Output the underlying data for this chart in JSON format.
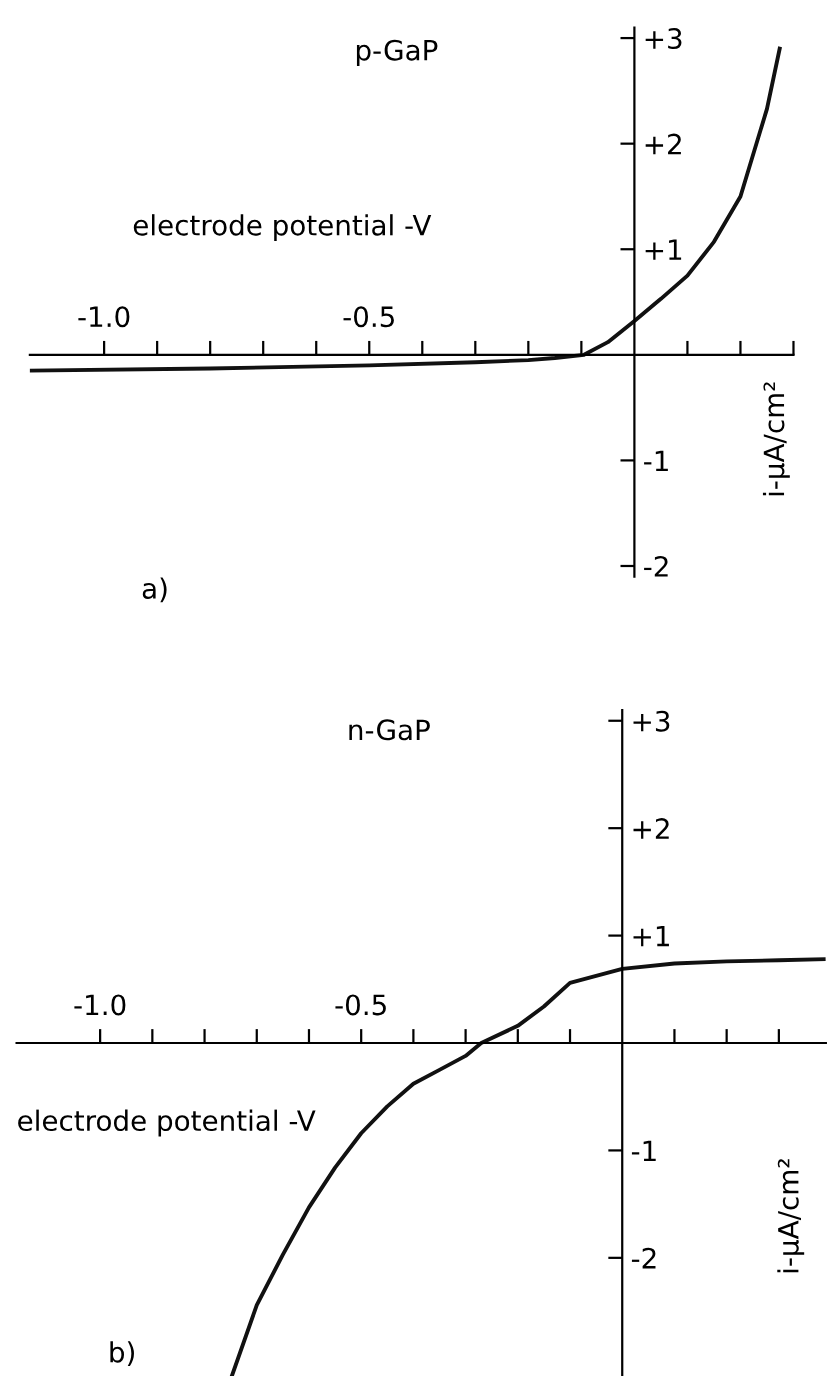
{
  "chart_data": [
    {
      "type": "line",
      "title": "p-GaP",
      "xlabel": "electrode potential -V",
      "ylabel": "i-μA/cm²",
      "annotations": [
        "a)"
      ],
      "series": [
        {
          "color": "#111111",
          "x": [
            -1.14,
            -0.8,
            -0.5,
            -0.3,
            -0.2,
            -0.15,
            -0.095,
            -0.05,
            0.0,
            0.05,
            0.1,
            0.15,
            0.2,
            0.25,
            0.274
          ],
          "values": [
            -0.15,
            -0.13,
            -0.1,
            -0.07,
            -0.05,
            -0.03,
            0.0,
            0.12,
            0.32,
            0.53,
            0.75,
            1.07,
            1.5,
            2.33,
            2.9
          ]
        }
      ],
      "xlim": [
        -1.14,
        0.3
      ],
      "ylim": [
        -2.1,
        3.1
      ],
      "xticks": [
        {
          "value": -1.0,
          "label": "-1.0"
        },
        {
          "value": -0.9,
          "label": null
        },
        {
          "value": -0.8,
          "label": null
        },
        {
          "value": -0.7,
          "label": null
        },
        {
          "value": -0.6,
          "label": null
        },
        {
          "value": -0.5,
          "label": "-0.5"
        },
        {
          "value": -0.4,
          "label": null
        },
        {
          "value": -0.3,
          "label": null
        },
        {
          "value": -0.2,
          "label": null
        },
        {
          "value": -0.1,
          "label": null
        },
        {
          "value": 0.1,
          "label": null
        },
        {
          "value": 0.2,
          "label": null
        },
        {
          "value": 0.3,
          "label": null
        }
      ],
      "yticks": [
        {
          "value": 3,
          "label": "+3"
        },
        {
          "value": 2,
          "label": "+2"
        },
        {
          "value": 1,
          "label": "+1"
        },
        -1,
        -2
      ],
      "grid": false,
      "legend": false,
      "marker": "none",
      "line_style": "solid"
    },
    {
      "type": "line",
      "title": "n-GaP",
      "xlabel": "electrode potential -V",
      "ylabel": "i-μA/cm²",
      "annotations": [
        "b)"
      ],
      "series": [
        {
          "color": "#111111",
          "x": [
            -0.747,
            -0.7,
            -0.65,
            -0.6,
            -0.55,
            -0.5,
            -0.45,
            -0.4,
            -0.35,
            -0.3,
            -0.27,
            -0.2,
            -0.15,
            -0.1,
            0.0,
            0.1,
            0.2,
            0.3,
            0.386
          ],
          "values": [
            -3.09,
            -2.44,
            -1.97,
            -1.53,
            -1.16,
            -0.84,
            -0.59,
            -0.38,
            -0.25,
            -0.12,
            0.0,
            0.16,
            0.34,
            0.56,
            0.69,
            0.74,
            0.76,
            0.77,
            0.78
          ]
        }
      ],
      "xlim": [
        -1.16,
        0.39
      ],
      "ylim": [
        -3.1,
        3.1
      ],
      "xticks": [
        {
          "value": -1.0,
          "label": "-1.0"
        },
        {
          "value": -0.9,
          "label": null
        },
        {
          "value": -0.8,
          "label": null
        },
        {
          "value": -0.7,
          "label": null
        },
        {
          "value": -0.6,
          "label": null
        },
        {
          "value": -0.5,
          "label": "-0.5"
        },
        {
          "value": -0.4,
          "label": null
        },
        {
          "value": -0.3,
          "label": null
        },
        {
          "value": -0.2,
          "label": null
        },
        {
          "value": -0.1,
          "label": null
        },
        {
          "value": 0.1,
          "label": null
        },
        {
          "value": 0.2,
          "label": null
        },
        {
          "value": 0.3,
          "label": null
        }
      ],
      "yticks": [
        {
          "value": 3,
          "label": "+3"
        },
        {
          "value": 2,
          "label": "+2"
        },
        {
          "value": 1,
          "label": "+1"
        },
        -1,
        -2
      ],
      "grid": false,
      "legend": false,
      "marker": "none",
      "line_style": "solid"
    }
  ]
}
